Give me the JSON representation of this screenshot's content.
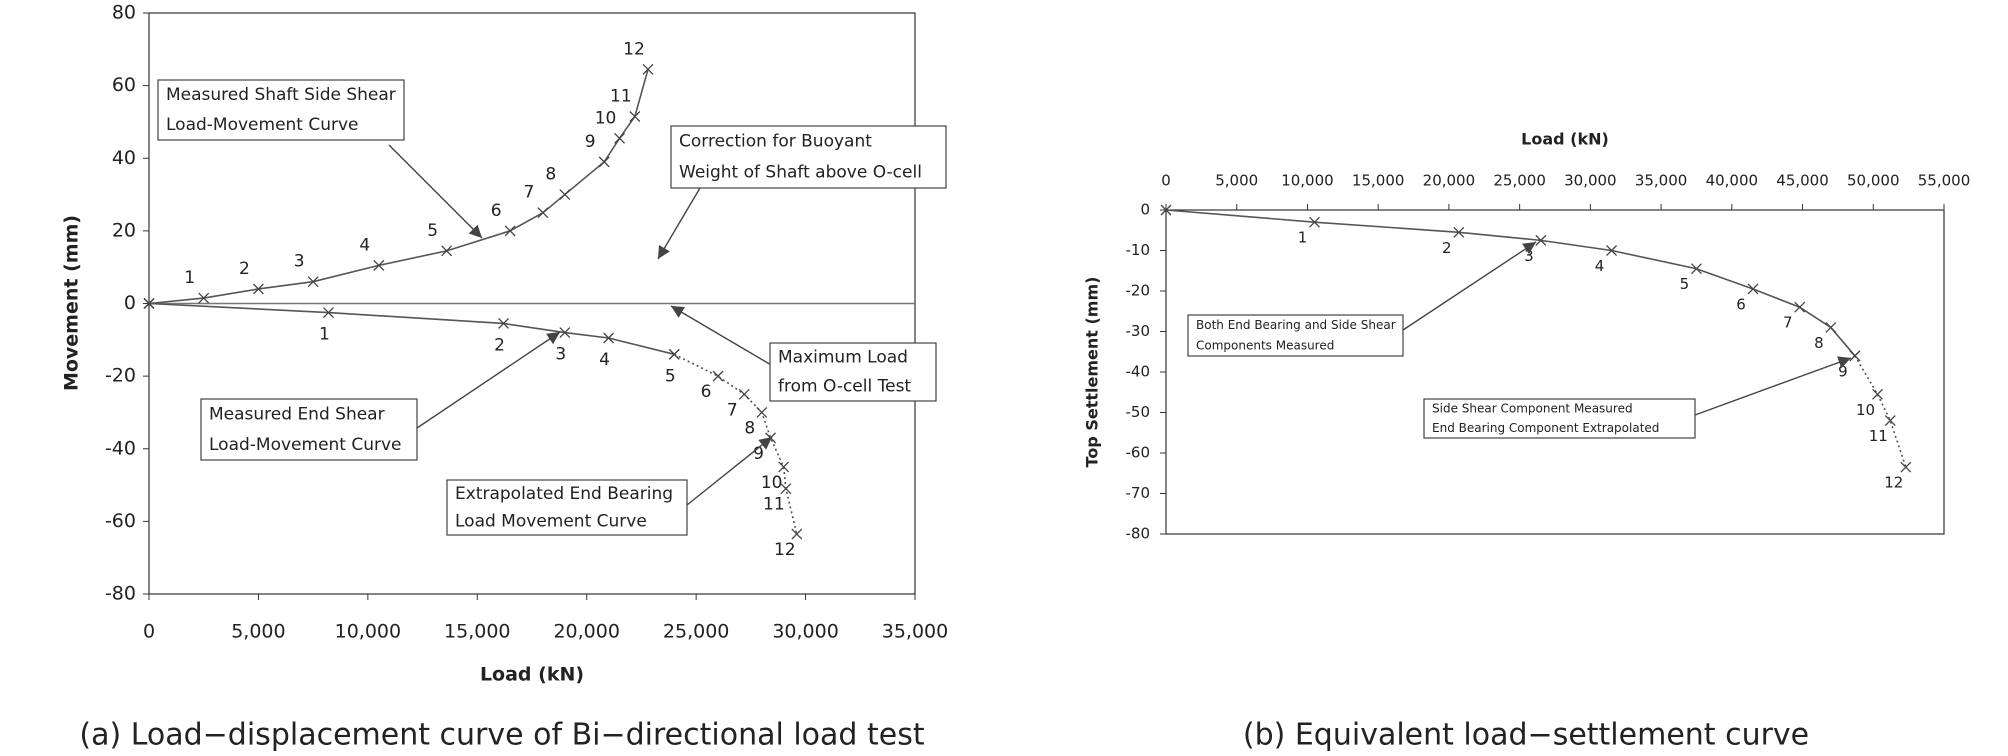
{
  "chart_data": [
    {
      "type": "line",
      "caption": "(a) Load−displacement curve of Bi−directional load test",
      "x_label": "Load (kN)",
      "y_label": "Movement (mm)",
      "xlim": [
        0,
        35000
      ],
      "ylim": [
        -80,
        80
      ],
      "xticks": [
        0,
        {
          "value": 5000,
          "label": "5,000"
        },
        {
          "value": 10000,
          "label": "10,000"
        },
        {
          "value": 15000,
          "label": "15,000"
        },
        {
          "value": 20000,
          "label": "20,000"
        },
        {
          "value": 25000,
          "label": "25,000"
        },
        {
          "value": 30000,
          "label": "30,000"
        },
        {
          "value": 35000,
          "label": "35,000"
        }
      ],
      "yticks": [
        80,
        60,
        40,
        20,
        0,
        -20,
        -40,
        -60,
        -80
      ],
      "x_axis_position": "bottom",
      "series": [
        {
          "color": "#555555",
          "style": "solid",
          "x": [
            0,
            2500,
            5000,
            7500,
            10500,
            13600,
            16500,
            18000,
            19000,
            20800,
            21500,
            22200,
            22800
          ],
          "y": [
            0,
            1.5,
            4,
            6,
            10.5,
            14.5,
            20,
            25,
            30,
            39,
            45.5,
            51.5,
            64.5
          ],
          "labels": [
            null,
            "1",
            "2",
            "3",
            "4",
            "5",
            "6",
            "7",
            "8",
            "9",
            "10",
            "11",
            "12"
          ]
        },
        {
          "color": "#555555",
          "style": "solid",
          "x": [
            0,
            8200,
            16200,
            19000,
            21000,
            24000
          ],
          "y": [
            0,
            -2.5,
            -5.5,
            -8,
            -9.5,
            -14
          ],
          "labels": [
            null,
            "1",
            "2",
            "3",
            "4",
            "5"
          ]
        },
        {
          "color": "#555555",
          "style": "dotted",
          "x": [
            24000,
            26000,
            27200,
            28000,
            28400,
            29000,
            29100,
            29600
          ],
          "y": [
            -14,
            -20,
            -25,
            -30,
            -37,
            -45,
            -51,
            -63.5
          ],
          "labels": [
            null,
            "6",
            "7",
            "8",
            "9",
            "10",
            "11",
            "12"
          ]
        }
      ],
      "annotations": [
        [
          "Measured Shaft Side Shear",
          "Load-Movement Curve"
        ],
        [
          "Correction for Buoyant",
          "Weight of Shaft above O-cell"
        ],
        [
          "Maximum Load",
          "from O-cell Test"
        ],
        [
          "Measured End Shear",
          "Load-Movement Curve"
        ],
        [
          "Extrapolated End Bearing",
          "Load Movement Curve"
        ]
      ]
    },
    {
      "type": "line",
      "caption": "(b) Equivalent load−settlement curve",
      "x_label": "Load (kN)",
      "y_label": "Top Settlement (mm)",
      "xlim": [
        0,
        55000
      ],
      "ylim": [
        -80,
        0
      ],
      "xticks": [
        0,
        {
          "value": 5000,
          "label": "5,000"
        },
        {
          "value": 10000,
          "label": "10,000"
        },
        {
          "value": 15000,
          "label": "15,000"
        },
        {
          "value": 20000,
          "label": "20,000"
        },
        {
          "value": 25000,
          "label": "25,000"
        },
        {
          "value": 30000,
          "label": "30,000"
        },
        {
          "value": 35000,
          "label": "35,000"
        },
        {
          "value": 40000,
          "label": "40,000"
        },
        {
          "value": 45000,
          "label": "45,000"
        },
        {
          "value": 50000,
          "label": "50,000"
        },
        {
          "value": 55000,
          "label": "55,000"
        }
      ],
      "yticks": [
        0,
        -10,
        -20,
        -30,
        -40,
        -50,
        -60,
        -70,
        -80
      ],
      "x_axis_position": "top",
      "series": [
        {
          "color": "#555555",
          "style": "solid",
          "x": [
            0,
            10500,
            20700,
            26500,
            31500,
            37500,
            41500,
            44800,
            47000,
            48700
          ],
          "y": [
            0,
            -3,
            -5.5,
            -7.5,
            -10,
            -14.5,
            -19.5,
            -24,
            -29,
            -36
          ],
          "labels": [
            null,
            "1",
            "2",
            "3",
            "4",
            "5",
            "6",
            "7",
            "8",
            "9"
          ]
        },
        {
          "color": "#555555",
          "style": "dotted",
          "x": [
            48700,
            50300,
            51200,
            52300
          ],
          "y": [
            -36,
            -45.5,
            -52,
            -63.5
          ],
          "labels": [
            null,
            "10",
            "11",
            "12"
          ]
        }
      ],
      "annotations": [
        [
          "Both End Bearing and Side Shear",
          "Components Measured"
        ],
        [
          "Side Shear Component Measured",
          "End Bearing Component Extrapolated"
        ]
      ]
    }
  ]
}
